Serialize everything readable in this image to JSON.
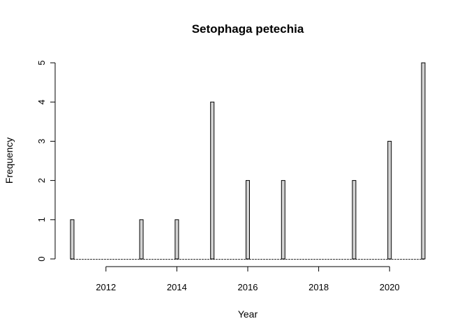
{
  "chart_data": {
    "type": "bar",
    "title": "Setophaga petechia",
    "xlabel": "Year",
    "ylabel": "Frequency",
    "x": [
      2011,
      2013,
      2014,
      2015,
      2016,
      2017,
      2019,
      2020,
      2021
    ],
    "values": [
      1,
      1,
      1,
      4,
      2,
      2,
      2,
      3,
      5
    ],
    "xlim": [
      2011,
      2021
    ],
    "ylim": [
      0,
      5
    ],
    "x_ticks": [
      "2012",
      "2014",
      "2016",
      "2018",
      "2020"
    ],
    "y_ticks": [
      "0",
      "1",
      "2",
      "3",
      "4",
      "5"
    ],
    "bar_fill": "#d3d3d3",
    "bar_stroke": "#000000",
    "grid": false,
    "legend": "none"
  }
}
